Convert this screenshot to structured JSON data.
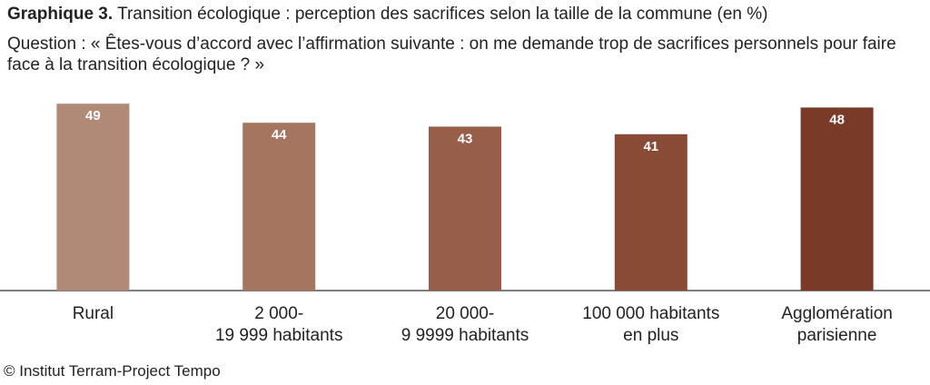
{
  "header": {
    "title_lead": "Graphique 3.",
    "title_rest": "Transition écologique : perception des sacrifices selon la taille de la commune (en %)",
    "question": "Question : « Êtes-vous d’accord avec l’affirmation suivante : on me demande trop de sacrifices personnels pour faire face à la transition écologique ? »"
  },
  "chart_data": {
    "type": "bar",
    "categories": [
      [
        "Rural"
      ],
      [
        "2 000-",
        "19 999 habitants"
      ],
      [
        "20 000-",
        "9 9999 habitants"
      ],
      [
        "100 000 habitants",
        "en plus"
      ],
      [
        "Agglomération",
        "parisienne"
      ]
    ],
    "values": [
      49,
      44,
      43,
      41,
      48
    ],
    "colors": [
      "#b18a77",
      "#a57560",
      "#975f49",
      "#894a36",
      "#7a3a28"
    ],
    "data_label_color": "#ffffff",
    "axis_color": "#555555",
    "ylim": [
      0,
      50
    ],
    "grid": false,
    "legend": "none",
    "xlabel": "",
    "ylabel": ""
  },
  "footer": {
    "credit": "© Institut Terram-Project Tempo"
  }
}
